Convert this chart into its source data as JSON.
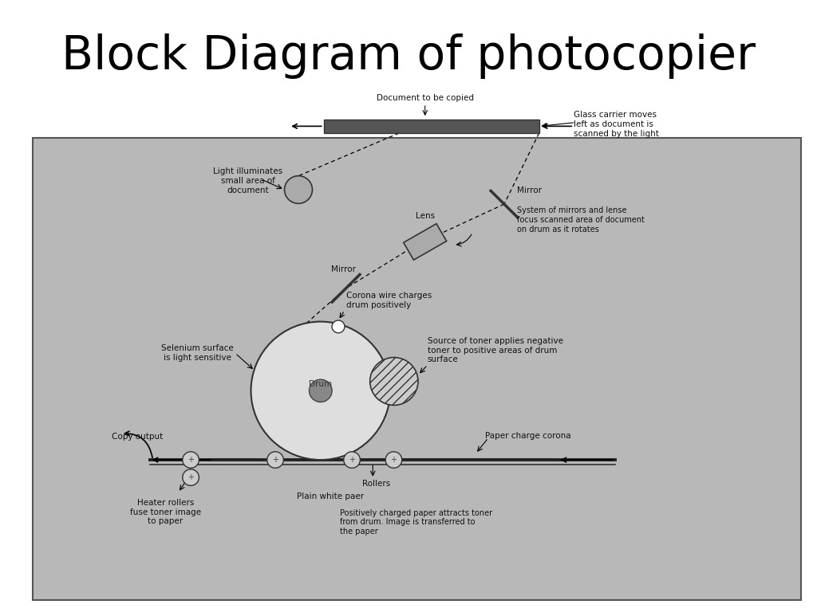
{
  "title": "Block Diagram of photocopier",
  "title_fontsize": 42,
  "bg_color": "#b8b8b8",
  "text_color": "#111111",
  "label_fontsize": 7.5,
  "labels": {
    "document": "Document to be copied",
    "glass_carrier": "Glass carrier moves\nleft as document is\nscanned by the light",
    "light_illuminates": "Light illuminates\nsmall area of\ndocument",
    "lens_label": "Lens",
    "mirror1_label": "Mirror",
    "mirror2_label": "Mirror",
    "system_mirrors": "System of mirrors and lense\nfocus scanned area of document\non drum as it rotates",
    "corona_wire": "Corona wire charges\ndrum positively",
    "selenium": "Selenium surface\nis light sensitive",
    "drum_label": "Drum",
    "toner_source": "Source of toner applies negative\ntoner to positive areas of drum\nsurface",
    "paper_corona": "Paper charge corona",
    "copy_output": "Copy output",
    "heater_rollers": "Heater rollers\nfuse toner image\nto paper",
    "plain_paper": "Plain white paer",
    "rollers": "Rollers",
    "positively_charged": "Positively charged paper attracts toner\nfrom drum. Image is transferred to\nthe paper"
  }
}
